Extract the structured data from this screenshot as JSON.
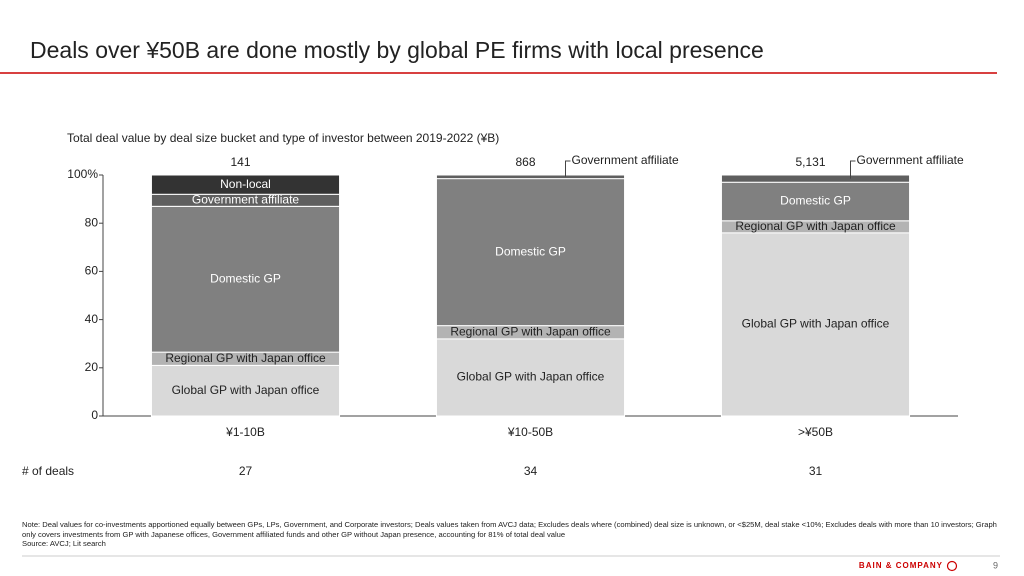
{
  "title": "Deals over ¥50B are done mostly by global PE firms with local presence",
  "chart_data": {
    "type": "stacked_bar",
    "title": "Total deal value by deal size bucket and type of investor between 2019-2022 (¥B)",
    "categories": [
      "¥1-10B",
      "¥10-50B",
      ">¥50B"
    ],
    "series": [
      {
        "name": "Global GP with Japan office",
        "color": "#d9d9d9",
        "values": [
          21,
          32,
          76
        ]
      },
      {
        "name": "Regional GP with Japan office",
        "color": "#b3b3b3",
        "values": [
          5.5,
          5.5,
          5
        ]
      },
      {
        "name": "Domestic GP",
        "color": "#808080",
        "values": [
          60.5,
          61,
          16
        ]
      },
      {
        "name": "Government affiliate",
        "color": "#5f5f5f",
        "values": [
          5,
          1.5,
          3
        ]
      },
      {
        "name": "Non-local",
        "color": "#333333",
        "values": [
          8,
          0,
          0
        ]
      }
    ],
    "totals": [
      {
        "value": 141,
        "label": "141"
      },
      {
        "value": 868,
        "label": "868"
      },
      {
        "value": 5131,
        "label": "5,131"
      }
    ],
    "ylim": [
      0,
      100
    ],
    "yticks": [
      0,
      20,
      40,
      60,
      80,
      {
        "value": 100,
        "label": "100%"
      }
    ],
    "deals_label": "# of deals",
    "deals": [
      27,
      34,
      31
    ]
  },
  "note": "Note: Deal values for co-investments apportioned equally between GPs, LPs, Government, and Corporate investors;  Deals values taken from AVCJ data; Excludes deals where (combined) deal size is unknown, or <$25M, deal stake <10%; Excludes deals with more than 10 investors; Graph only covers investments from GP with Japanese offices, Government affiliated funds and other GP  without Japan presence, accounting for 81% of total deal value",
  "source": "Source:  AVCJ;  Lit search",
  "footer": {
    "brand": "BAIN & COMPANY",
    "page": "9"
  }
}
